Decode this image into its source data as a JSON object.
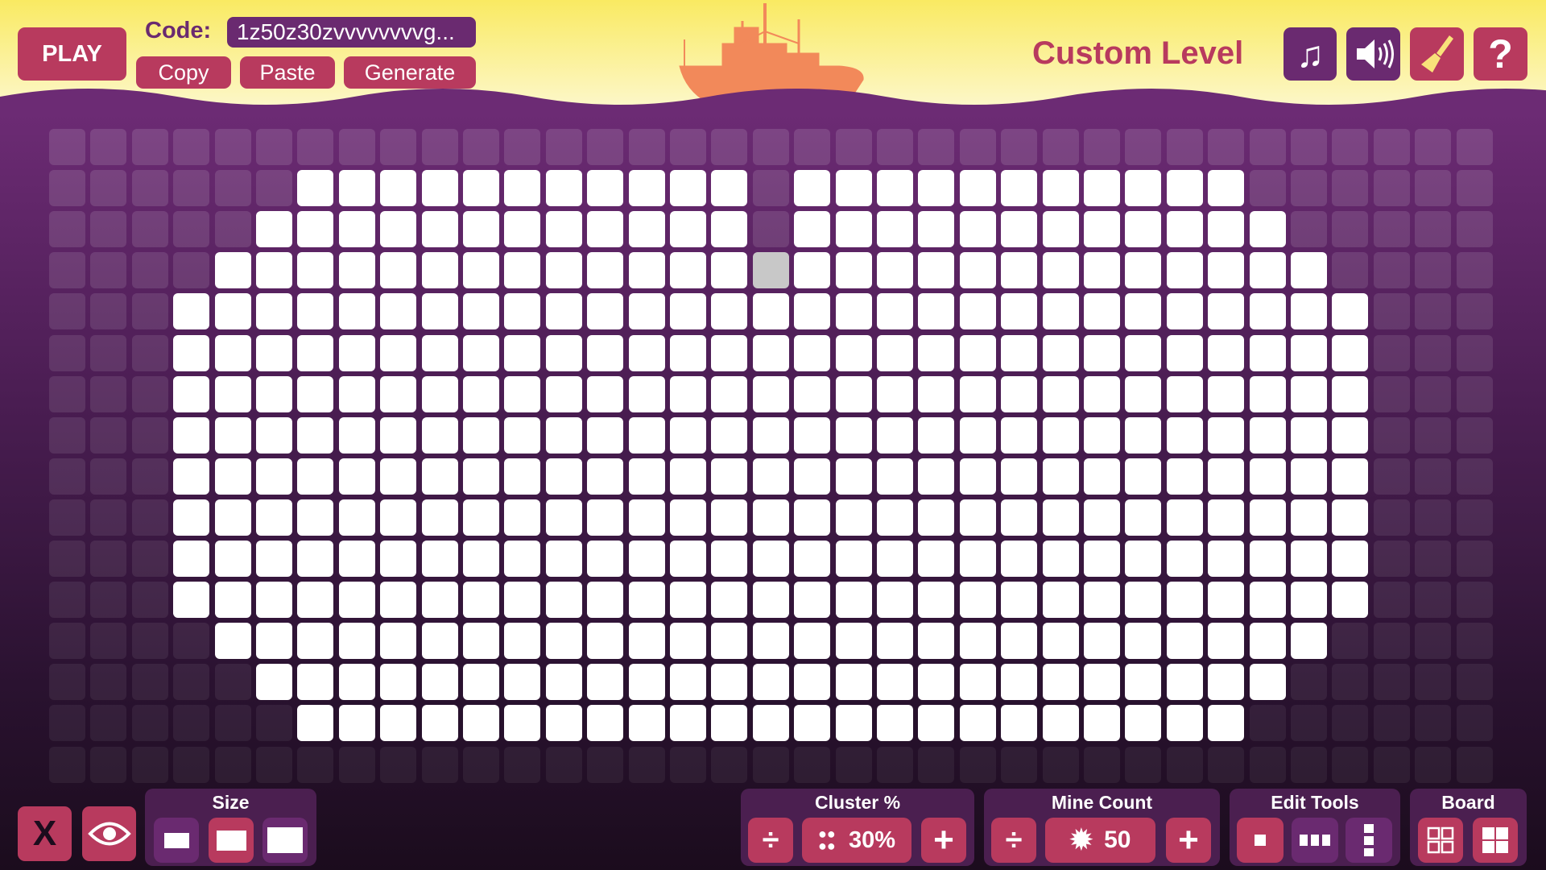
{
  "header": {
    "play_label": "PLAY",
    "code_label": "Code:",
    "code_value": "1z50z30zvvvvvvvvg...",
    "copy_label": "Copy",
    "paste_label": "Paste",
    "generate_label": "Generate",
    "title": "Custom Level",
    "icons": [
      "music-icon",
      "sound-icon",
      "brush-icon",
      "help-icon"
    ]
  },
  "colors": {
    "accent": "#b83a5e",
    "purple": "#6a2a70",
    "panel": "#4b1f50",
    "title": "#b83a5e",
    "ship": "#f2895a",
    "cell_on": "#ffffff",
    "cell_selected": "#c8c8c8"
  },
  "board": {
    "columns": 35,
    "rows": [
      "...................................",
      "......###########.###########......",
      ".....############.############.....",
      "....#############o#############....",
      "...#############################...",
      "...#############################...",
      "...#############################...",
      "...#############################...",
      "...#############################...",
      "...#############################...",
      "...#############################...",
      "...#############################...",
      "....###########################....",
      ".....#########################.....",
      "......#######################......",
      "..................................."
    ]
  },
  "toolbar": {
    "size_title": "Size",
    "size_selected": "medium",
    "cluster_title": "Cluster %",
    "cluster_value": "30%",
    "mine_title": "Mine Count",
    "mine_value": "50",
    "edit_title": "Edit Tools",
    "board_title": "Board",
    "minus_glyph": "÷",
    "plus_glyph": "+",
    "close_glyph": "X"
  }
}
